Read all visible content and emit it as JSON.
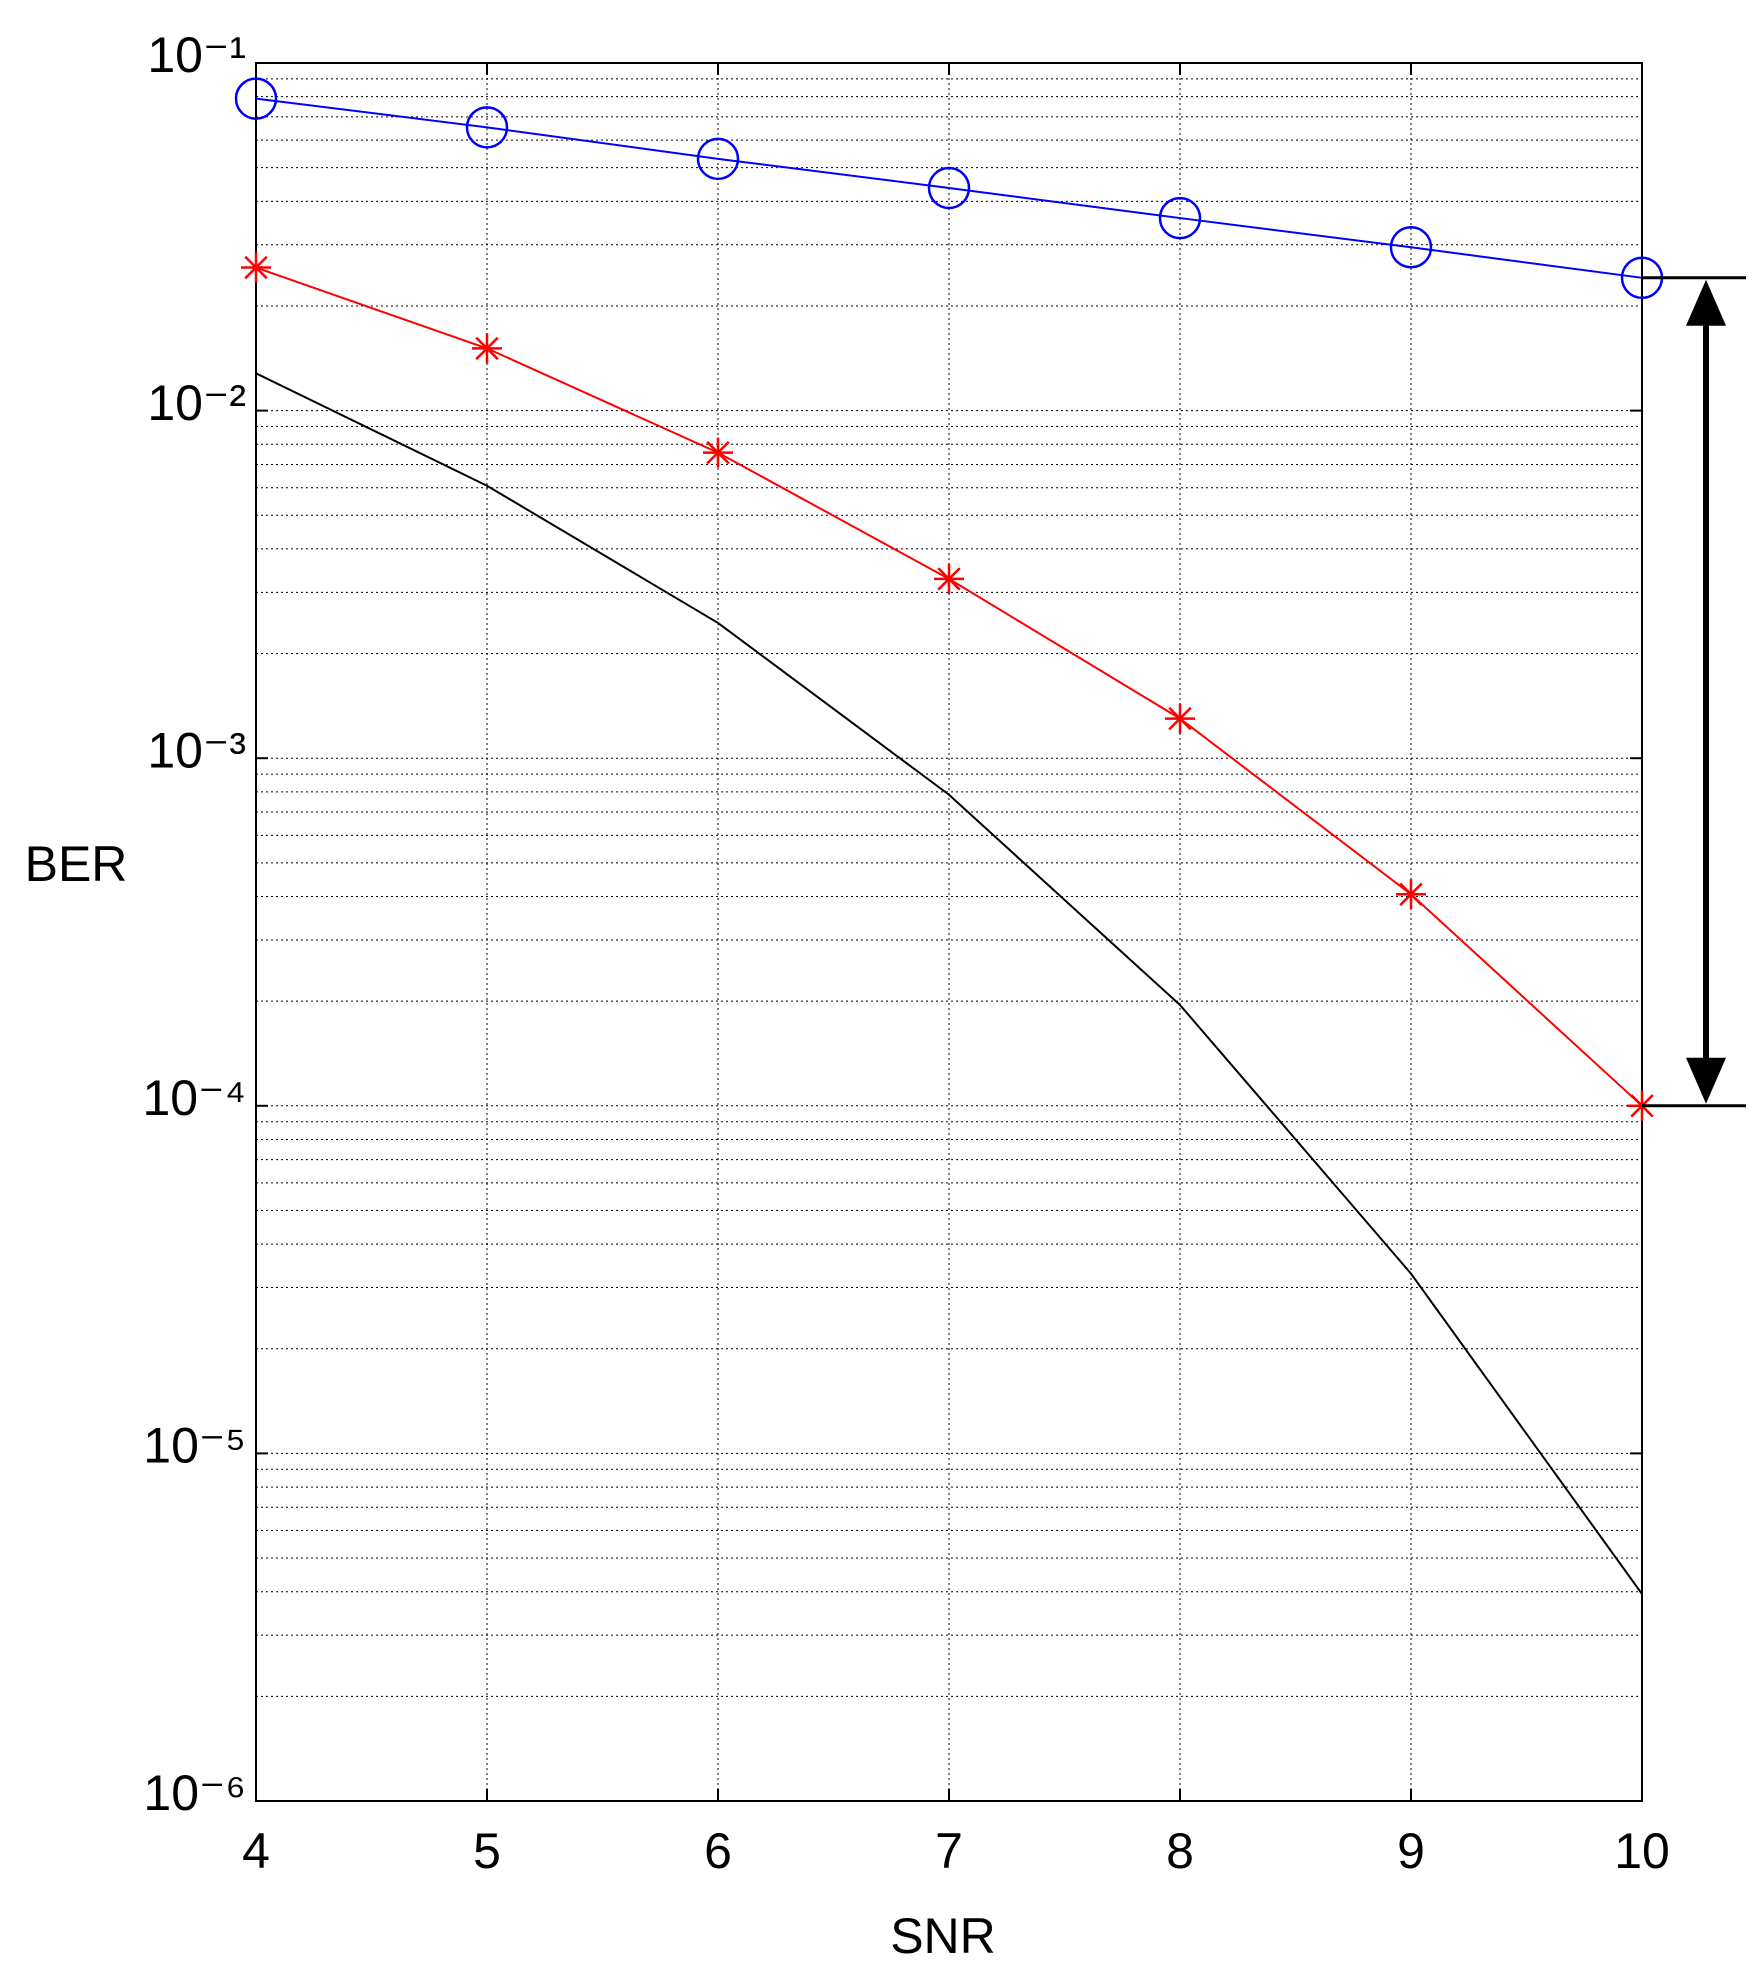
{
  "chart_data": {
    "type": "line",
    "xlabel": "SNR",
    "ylabel": "BER",
    "x": [
      4,
      5,
      6,
      7,
      8,
      9,
      10
    ],
    "series": [
      {
        "color": "#0000ff",
        "marker": "circle",
        "values": [
          0.079,
          0.0653,
          0.053,
          0.0437,
          0.0358,
          0.0295,
          0.0241
        ]
      },
      {
        "color": "#ff0000",
        "marker": "star",
        "values": [
          0.0258,
          0.0151,
          0.00757,
          0.00328,
          0.0013,
          0.000406,
          0.0001
        ]
      },
      {
        "color": "#000000",
        "marker": "none",
        "values": [
          0.0128,
          0.00608,
          0.00245,
          0.000785,
          0.000195,
          3.29e-05,
          3.94e-06
        ]
      }
    ],
    "xlim": [
      4,
      10
    ],
    "xticks": [
      4,
      5,
      6,
      7,
      8,
      9,
      10
    ],
    "ylim": [
      1e-06,
      0.1
    ],
    "yscale": "log",
    "yticks": [
      {
        "value": 1e-06,
        "label": "10⁻⁶"
      },
      {
        "value": 1e-05,
        "label": "10⁻⁵"
      },
      {
        "value": 0.0001,
        "label": "10⁻⁴"
      },
      {
        "value": 0.001,
        "label": "10⁻³"
      },
      {
        "value": 0.01,
        "label": "10⁻²"
      },
      {
        "value": 0.1,
        "label": "10⁻¹"
      }
    ],
    "grid": true,
    "minor_grid": true,
    "annotation_arrow": {
      "from_series": 0,
      "to_series": 1,
      "at_index": 6
    }
  }
}
